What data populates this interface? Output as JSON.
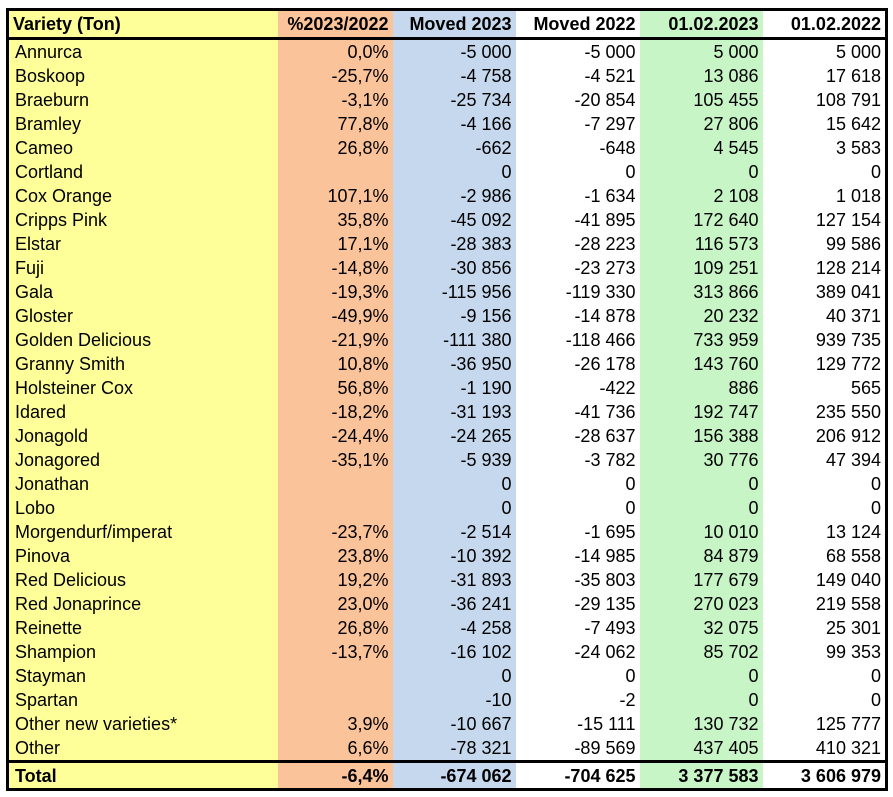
{
  "header": {
    "variety": "Variety (Ton)",
    "change": "%2023/2022",
    "moved_2023": "Moved 2023",
    "moved_2022": "Moved 2022",
    "stock_2023": "01.02.2023",
    "stock_2022": "01.02.2022"
  },
  "colors": {
    "variety_column": "#ffff99",
    "change_column": "#fbc39a",
    "moved_2023_column": "#c6d8ee",
    "moved_2022_column": "#ffffff",
    "stock_2023_column": "#c8f5c6",
    "stock_2022_column": "#ffffff"
  },
  "rows": [
    {
      "name": "Annurca",
      "change": "0,0%",
      "moved_2023": "-5 000",
      "moved_2022": "-5 000",
      "stock_2023": "5 000",
      "stock_2022": "5 000"
    },
    {
      "name": "Boskoop",
      "change": "-25,7%",
      "moved_2023": "-4 758",
      "moved_2022": "-4 521",
      "stock_2023": "13 086",
      "stock_2022": "17 618"
    },
    {
      "name": "Braeburn",
      "change": "-3,1%",
      "moved_2023": "-25 734",
      "moved_2022": "-20 854",
      "stock_2023": "105 455",
      "stock_2022": "108 791"
    },
    {
      "name": "Bramley",
      "change": "77,8%",
      "moved_2023": "-4 166",
      "moved_2022": "-7 297",
      "stock_2023": "27 806",
      "stock_2022": "15 642"
    },
    {
      "name": "Cameo",
      "change": "26,8%",
      "moved_2023": "-662",
      "moved_2022": "-648",
      "stock_2023": "4 545",
      "stock_2022": "3 583"
    },
    {
      "name": "Cortland",
      "change": "",
      "moved_2023": "0",
      "moved_2022": "0",
      "stock_2023": "0",
      "stock_2022": "0"
    },
    {
      "name": "Cox Orange",
      "change": "107,1%",
      "moved_2023": "-2 986",
      "moved_2022": "-1 634",
      "stock_2023": "2 108",
      "stock_2022": "1 018"
    },
    {
      "name": "Cripps Pink",
      "change": "35,8%",
      "moved_2023": "-45 092",
      "moved_2022": "-41 895",
      "stock_2023": "172 640",
      "stock_2022": "127 154"
    },
    {
      "name": "Elstar",
      "change": "17,1%",
      "moved_2023": "-28 383",
      "moved_2022": "-28 223",
      "stock_2023": "116 573",
      "stock_2022": "99 586"
    },
    {
      "name": "Fuji",
      "change": "-14,8%",
      "moved_2023": "-30 856",
      "moved_2022": "-23 273",
      "stock_2023": "109 251",
      "stock_2022": "128 214"
    },
    {
      "name": "Gala",
      "change": "-19,3%",
      "moved_2023": "-115 956",
      "moved_2022": "-119 330",
      "stock_2023": "313 866",
      "stock_2022": "389 041"
    },
    {
      "name": "Gloster",
      "change": "-49,9%",
      "moved_2023": "-9 156",
      "moved_2022": "-14 878",
      "stock_2023": "20 232",
      "stock_2022": "40 371"
    },
    {
      "name": "Golden Delicious",
      "change": "-21,9%",
      "moved_2023": "-111 380",
      "moved_2022": "-118 466",
      "stock_2023": "733 959",
      "stock_2022": "939 735"
    },
    {
      "name": "Granny Smith",
      "change": "10,8%",
      "moved_2023": "-36 950",
      "moved_2022": "-26 178",
      "stock_2023": "143 760",
      "stock_2022": "129 772"
    },
    {
      "name": "Holsteiner Cox",
      "change": "56,8%",
      "moved_2023": "-1 190",
      "moved_2022": "-422",
      "stock_2023": "886",
      "stock_2022": "565"
    },
    {
      "name": "Idared",
      "change": "-18,2%",
      "moved_2023": "-31 193",
      "moved_2022": "-41 736",
      "stock_2023": "192 747",
      "stock_2022": "235 550"
    },
    {
      "name": "Jonagold",
      "change": "-24,4%",
      "moved_2023": "-24 265",
      "moved_2022": "-28 637",
      "stock_2023": "156 388",
      "stock_2022": "206 912"
    },
    {
      "name": "Jonagored",
      "change": "-35,1%",
      "moved_2023": "-5 939",
      "moved_2022": "-3 782",
      "stock_2023": "30 776",
      "stock_2022": "47 394"
    },
    {
      "name": "Jonathan",
      "change": "",
      "moved_2023": "0",
      "moved_2022": "0",
      "stock_2023": "0",
      "stock_2022": "0"
    },
    {
      "name": "Lobo",
      "change": "",
      "moved_2023": "0",
      "moved_2022": "0",
      "stock_2023": "0",
      "stock_2022": "0"
    },
    {
      "name": "Morgendurf/imperat",
      "change": "-23,7%",
      "moved_2023": "-2 514",
      "moved_2022": "-1 695",
      "stock_2023": "10 010",
      "stock_2022": "13 124"
    },
    {
      "name": "Pinova",
      "change": "23,8%",
      "moved_2023": "-10 392",
      "moved_2022": "-14 985",
      "stock_2023": "84 879",
      "stock_2022": "68 558"
    },
    {
      "name": "Red Delicious",
      "change": "19,2%",
      "moved_2023": "-31 893",
      "moved_2022": "-35 803",
      "stock_2023": "177 679",
      "stock_2022": "149 040"
    },
    {
      "name": "Red Jonaprince",
      "change": "23,0%",
      "moved_2023": "-36 241",
      "moved_2022": "-29 135",
      "stock_2023": "270 023",
      "stock_2022": "219 558"
    },
    {
      "name": "Reinette",
      "change": "26,8%",
      "moved_2023": "-4 258",
      "moved_2022": "-7 493",
      "stock_2023": "32 075",
      "stock_2022": "25 301"
    },
    {
      "name": "Shampion",
      "change": "-13,7%",
      "moved_2023": "-16 102",
      "moved_2022": "-24 062",
      "stock_2023": "85 702",
      "stock_2022": "99 353"
    },
    {
      "name": "Stayman",
      "change": "",
      "moved_2023": "0",
      "moved_2022": "0",
      "stock_2023": "0",
      "stock_2022": "0"
    },
    {
      "name": "Spartan",
      "change": "",
      "moved_2023": "-10",
      "moved_2022": "-2",
      "stock_2023": "0",
      "stock_2022": "0"
    },
    {
      "name": "Other new varieties*",
      "change": "3,9%",
      "moved_2023": "-10 667",
      "moved_2022": "-15 111",
      "stock_2023": "130 732",
      "stock_2022": "125 777"
    },
    {
      "name": "Other",
      "change": "6,6%",
      "moved_2023": "-78 321",
      "moved_2022": "-89 569",
      "stock_2023": "437 405",
      "stock_2022": "410 321"
    }
  ],
  "total": {
    "name": "Total",
    "change": "-6,4%",
    "moved_2023": "-674 062",
    "moved_2022": "-704 625",
    "stock_2023": "3 377 583",
    "stock_2022": "3 606 979"
  }
}
